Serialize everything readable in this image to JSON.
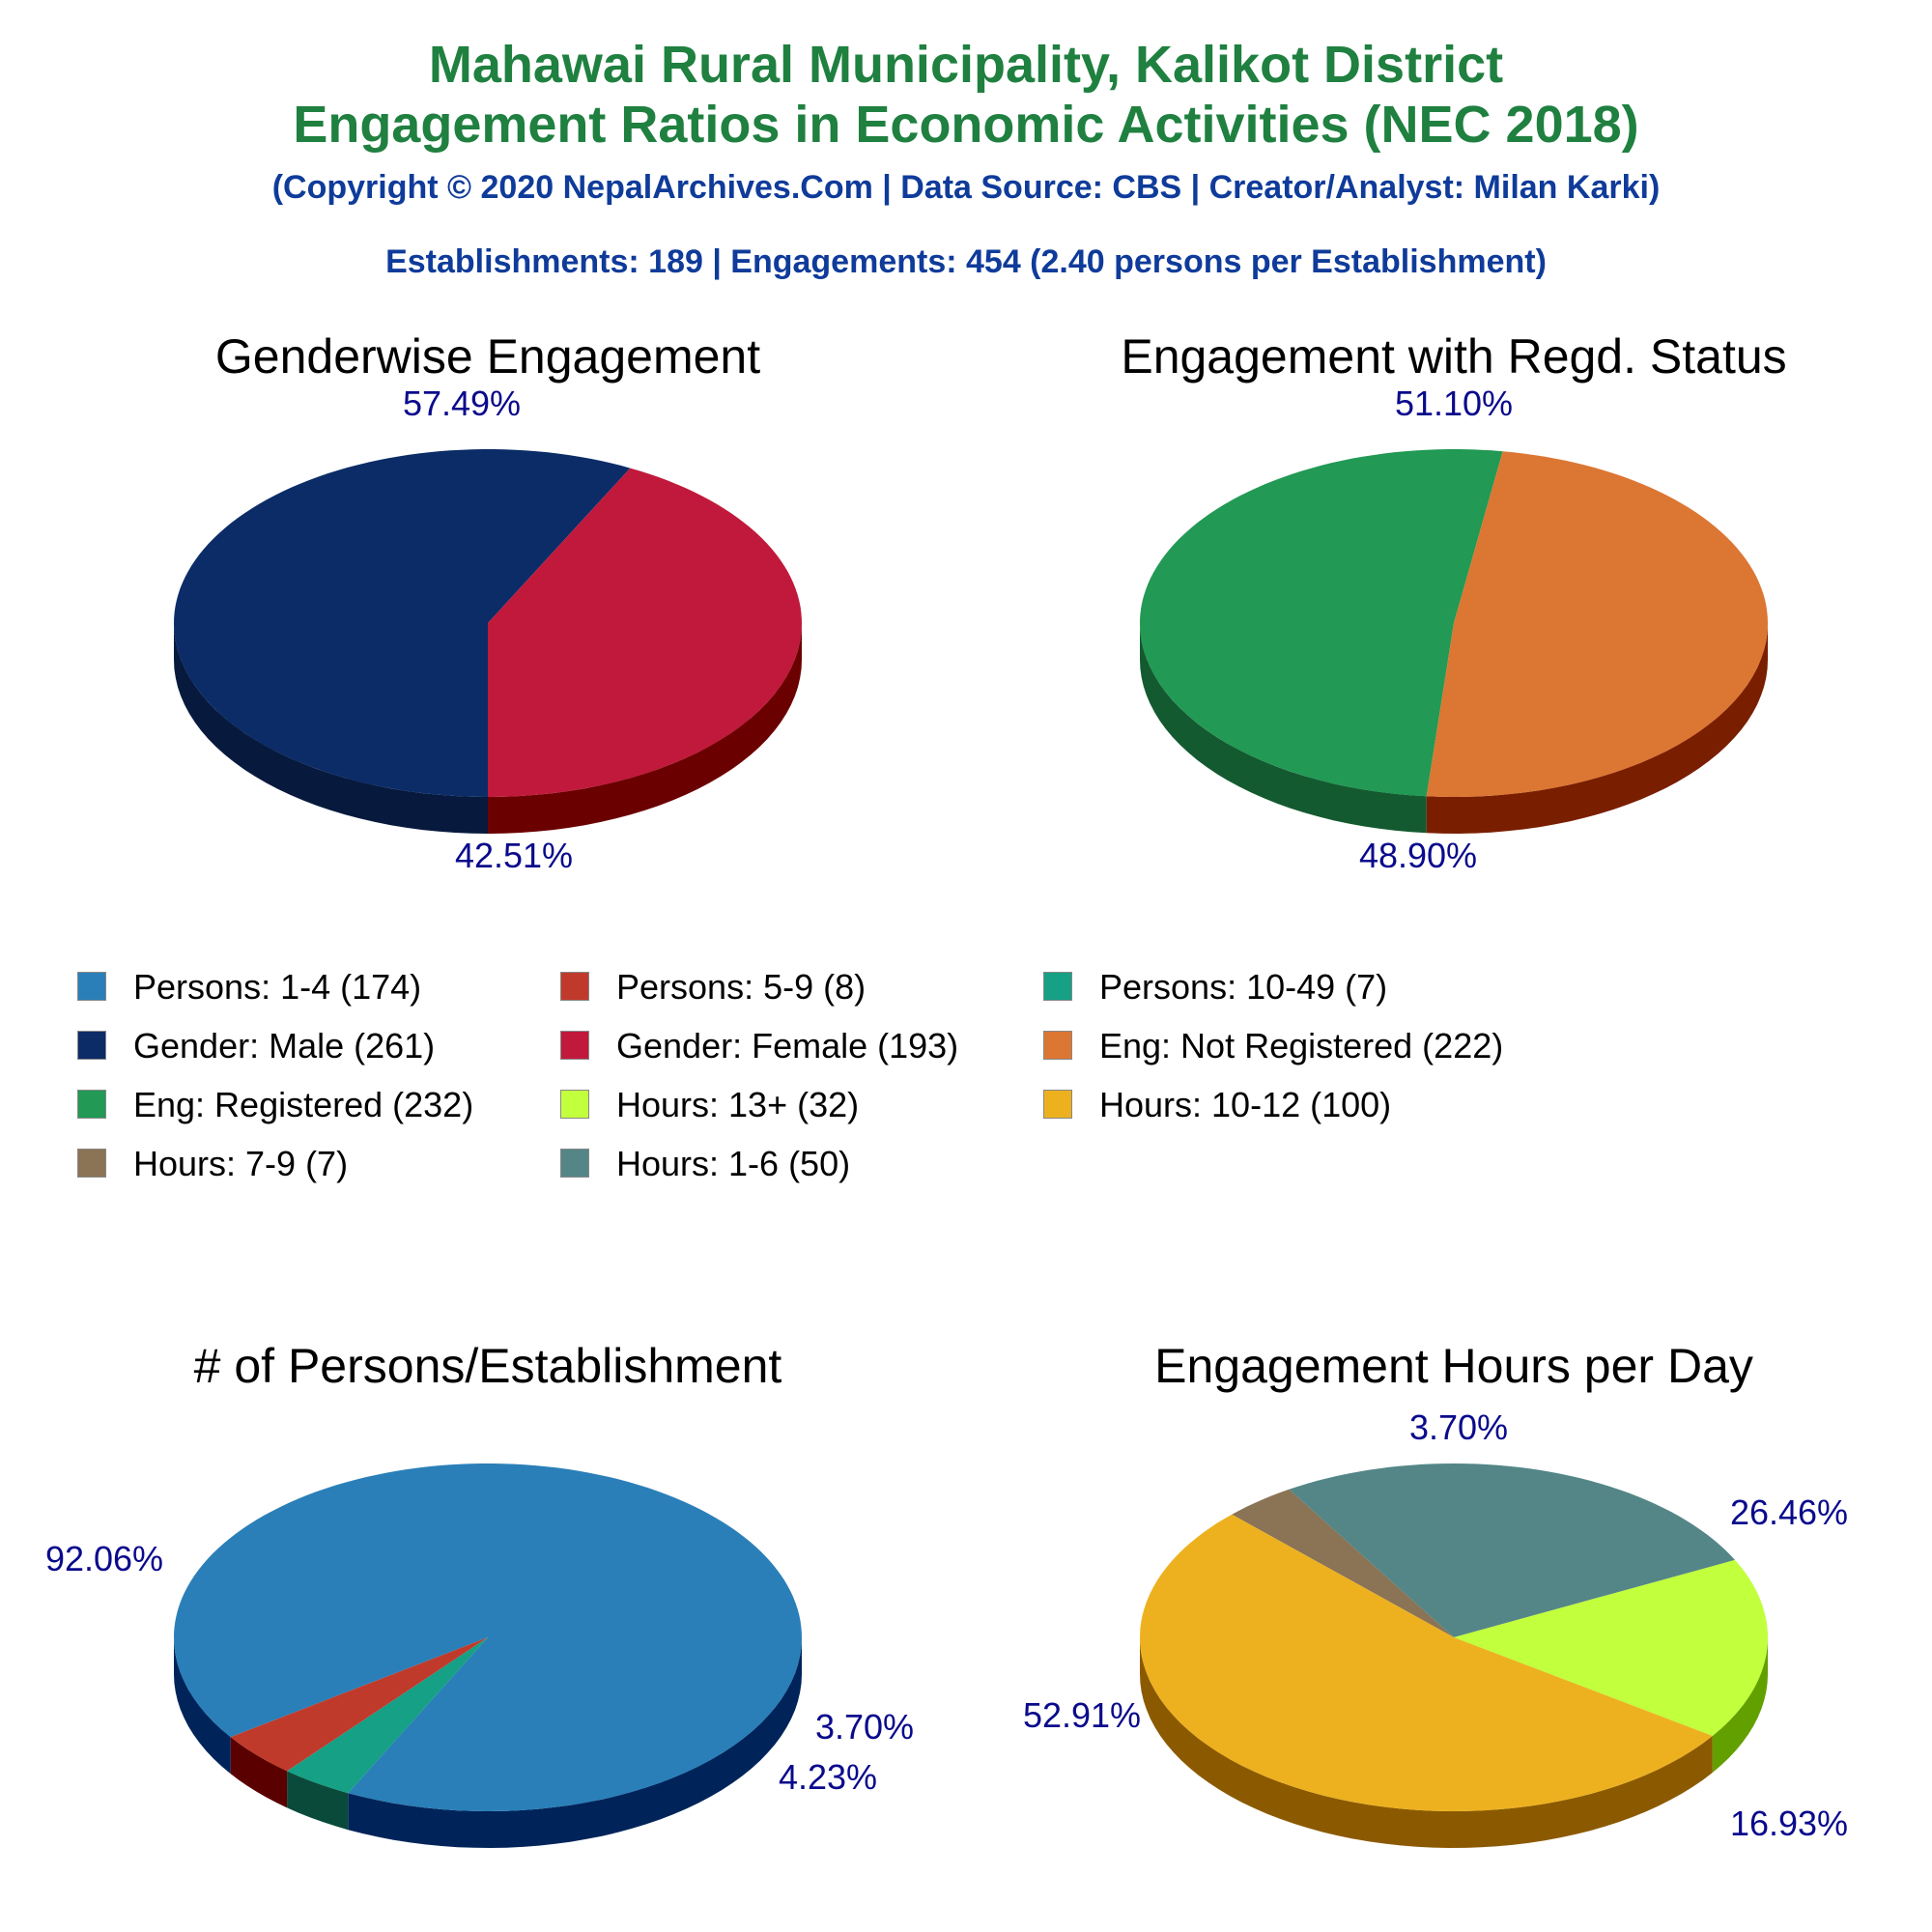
{
  "header": {
    "title_line1": "Mahawai Rural Municipality, Kalikot District",
    "title_line2": "Engagement Ratios in Economic Activities (NEC 2018)",
    "copyright": "(Copyright © 2020 NepalArchives.Com | Data Source: CBS | Creator/Analyst: Milan Karki)",
    "summary": "Establishments: 189 | Engagements: 454 (2.40 persons per Establishment)"
  },
  "legend": [
    {
      "label": "Persons: 1-4 (174)",
      "color": "#2a7fb8"
    },
    {
      "label": "Persons: 5-9 (8)",
      "color": "#c03a2b"
    },
    {
      "label": "Persons: 10-49 (7)",
      "color": "#16a085"
    },
    {
      "label": "Gender: Male (261)",
      "color": "#0b2c67"
    },
    {
      "label": "Gender: Female (193)",
      "color": "#c0193b"
    },
    {
      "label": "Eng: Not Registered (222)",
      "color": "#dc7633"
    },
    {
      "label": "Eng: Registered (232)",
      "color": "#229954"
    },
    {
      "label": "Hours: 13+ (32)",
      "color": "#c2ff3d"
    },
    {
      "label": "Hours: 10-12 (100)",
      "color": "#edb120"
    },
    {
      "label": "Hours: 7-9 (7)",
      "color": "#8b7355"
    },
    {
      "label": "Hours: 1-6 (50)",
      "color": "#548687"
    }
  ],
  "chart_data": [
    {
      "type": "pie",
      "title": "Genderwise Engagement",
      "slices": [
        {
          "name": "Gender: Male",
          "value": 261,
          "label": "57.49%",
          "color": "#0b2c67",
          "side": "#071a3d"
        },
        {
          "name": "Gender: Female",
          "value": 193,
          "label": "42.51%",
          "color": "#c0193b",
          "side": "#6b0000"
        }
      ]
    },
    {
      "type": "pie",
      "title": "Engagement with Regd. Status",
      "slices": [
        {
          "name": "Eng: Registered",
          "value": 232,
          "label": "51.10%",
          "color": "#229954",
          "side": "#135a30"
        },
        {
          "name": "Eng: Not Registered",
          "value": 222,
          "label": "48.90%",
          "color": "#dc7633",
          "side": "#7a1e00"
        }
      ]
    },
    {
      "type": "pie",
      "title": "# of Persons/Establishment",
      "slices": [
        {
          "name": "Persons: 1-4",
          "value": 174,
          "label": "92.06%",
          "color": "#2a7fb8",
          "side": "#00245a"
        },
        {
          "name": "Persons: 10-49",
          "value": 7,
          "label": "3.70%",
          "color": "#16a085",
          "side": "#0a4a3a"
        },
        {
          "name": "Persons: 5-9",
          "value": 8,
          "label": "4.23%",
          "color": "#c03a2b",
          "side": "#5a0000"
        }
      ]
    },
    {
      "type": "pie",
      "title": "Engagement Hours per Day",
      "slices": [
        {
          "name": "Hours: 7-9",
          "value": 7,
          "label": "3.70%",
          "color": "#8b7355",
          "side": "#4a3a28"
        },
        {
          "name": "Hours: 1-6",
          "value": 50,
          "label": "26.46%",
          "color": "#548687",
          "side": "#2a4445"
        },
        {
          "name": "Hours: 13+",
          "value": 32,
          "label": "16.93%",
          "color": "#c2ff3d",
          "side": "#62a000"
        },
        {
          "name": "Hours: 10-12",
          "value": 100,
          "label": "52.91%",
          "color": "#edb120",
          "side": "#8b5a00"
        }
      ]
    }
  ]
}
